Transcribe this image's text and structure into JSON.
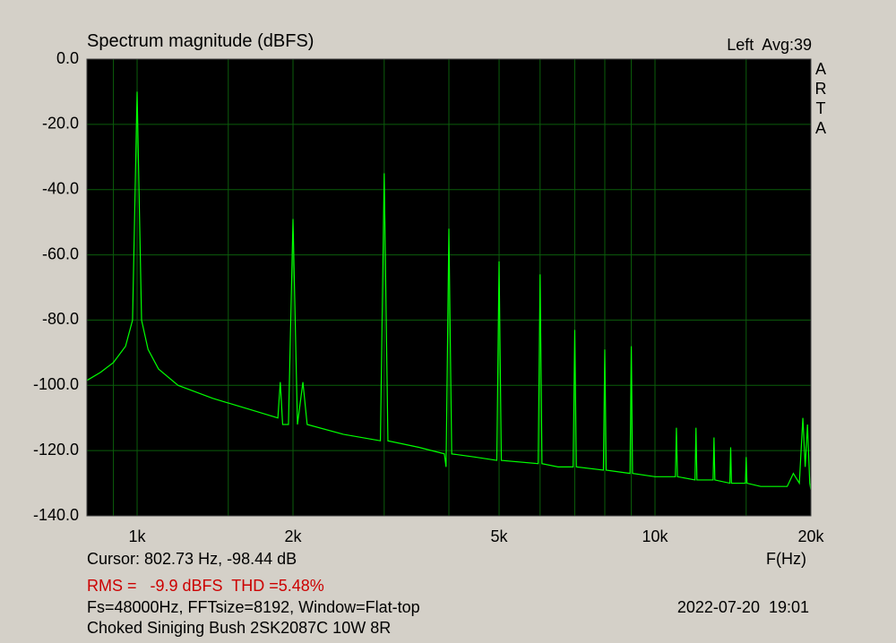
{
  "chart_data": {
    "type": "line",
    "title": "Spectrum magnitude (dBFS)",
    "channel_label": "Left  Avg:39",
    "side_label": [
      "A",
      "R",
      "T",
      "A"
    ],
    "x_label": "F(Hz)",
    "cursor_text": "Cursor: 802.73 Hz, -98.44 dB",
    "rms_text": "RMS =   -9.9 dBFS  THD =5.48%",
    "settings_text": "Fs=48000Hz, FFTsize=8192, Window=Flat-top",
    "date_text": "2022-07-20  19:01",
    "caption": "Choked Siniging Bush 2SK2087C 10W 8R",
    "xscale": "log",
    "grid": true,
    "color": "#00ff00",
    "grid_color": "#0b5d0b",
    "xlim": [
      800,
      20000
    ],
    "ylim": [
      -140,
      0
    ],
    "xticks": [
      {
        "value": 1000,
        "label": "1k"
      },
      {
        "value": 2000,
        "label": "2k"
      },
      {
        "value": 5000,
        "label": "5k"
      },
      {
        "value": 10000,
        "label": "10k"
      },
      {
        "value": 20000,
        "label": "20k"
      }
    ],
    "xminor": [
      900,
      1500,
      3000,
      4000,
      6000,
      7000,
      8000,
      9000,
      15000
    ],
    "yticks": [
      {
        "value": 0,
        "label": "0.0"
      },
      {
        "value": -20,
        "label": "-20.0"
      },
      {
        "value": -40,
        "label": "-40.0"
      },
      {
        "value": -60,
        "label": "-60.0"
      },
      {
        "value": -80,
        "label": "-80.0"
      },
      {
        "value": -100,
        "label": "-100.0"
      },
      {
        "value": -120,
        "label": "-120.0"
      },
      {
        "value": -140,
        "label": "-140.0"
      }
    ],
    "x": [
      800,
      850,
      900,
      950,
      980,
      1000,
      1020,
      1050,
      1100,
      1200,
      1400,
      1700,
      1870,
      1890,
      1910,
      1960,
      2000,
      2040,
      2090,
      2130,
      2500,
      2950,
      3000,
      3050,
      3500,
      3920,
      3950,
      4000,
      4050,
      4500,
      4950,
      5000,
      5050,
      5950,
      6000,
      6050,
      6500,
      6950,
      7000,
      7050,
      7950,
      8000,
      8050,
      8950,
      9000,
      9050,
      10000,
      10950,
      11000,
      11050,
      11950,
      12000,
      12050,
      12950,
      13000,
      13050,
      13950,
      14000,
      14050,
      14950,
      15000,
      15050,
      16000,
      17000,
      18000,
      18500,
      19000,
      19300,
      19500,
      19700,
      19900,
      20000
    ],
    "values": [
      -98.5,
      -96,
      -93,
      -88,
      -80,
      -10,
      -80,
      -89,
      -95,
      -100,
      -104,
      -108,
      -110,
      -99,
      -112,
      -112,
      -49,
      -112,
      -99,
      -112,
      -115,
      -117,
      -35,
      -117,
      -119,
      -121,
      -125,
      -52,
      -121,
      -122,
      -123,
      -62,
      -123,
      -124,
      -66,
      -124,
      -125,
      -125,
      -83,
      -125,
      -126,
      -89,
      -126,
      -127,
      -88,
      -127,
      -128,
      -128,
      -113,
      -128,
      -129,
      -113,
      -129,
      -129,
      -116,
      -129,
      -130,
      -119,
      -130,
      -130,
      -122,
      -130,
      -131,
      -131,
      -131,
      -127,
      -130,
      -110,
      -125,
      -112,
      -130,
      -132
    ]
  }
}
